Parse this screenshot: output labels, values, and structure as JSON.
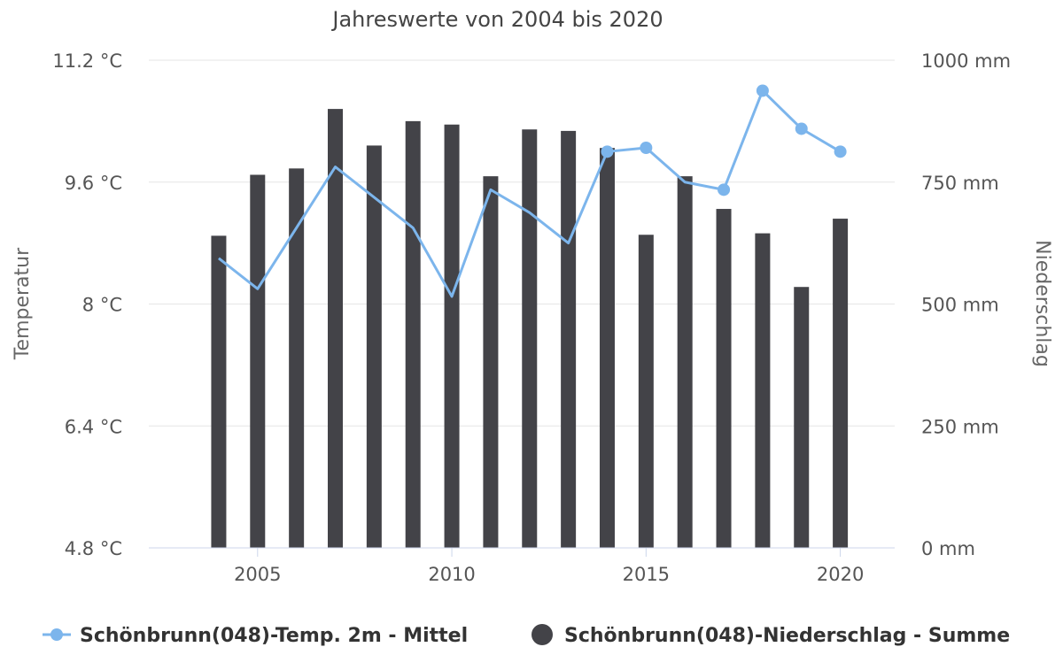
{
  "chart_data": {
    "type": "bar+line",
    "title": "Jahreswerte von 2004 bis 2020",
    "x": [
      2004,
      2005,
      2006,
      2007,
      2008,
      2009,
      2010,
      2011,
      2012,
      2013,
      2014,
      2015,
      2016,
      2017,
      2018,
      2019,
      2020
    ],
    "x_ticks": [
      "2005",
      "2010",
      "2015",
      "2020"
    ],
    "xlim": [
      2002.2,
      2021.4
    ],
    "y_left": {
      "label": "Temperatur",
      "range": [
        4.8,
        11.2
      ],
      "ticks": [
        "4.8 °C",
        "6.4 °C",
        "8 °C",
        "9.6 °C",
        "11.2 °C"
      ]
    },
    "y_right": {
      "label": "Niederschlag",
      "range": [
        0,
        1000
      ],
      "ticks": [
        "0 mm",
        "250 mm",
        "500 mm",
        "750 mm",
        "1000 mm"
      ]
    },
    "grid": true,
    "legend_position": "bottom",
    "series": [
      {
        "name": "Schönbrunn(048)-Temp. 2m - Mittel",
        "type": "line",
        "axis": "left",
        "unit": "°C",
        "color": "#7cb5ec",
        "values": [
          8.6,
          8.2,
          9.0,
          9.8,
          9.4,
          9.0,
          8.1,
          9.5,
          9.2,
          8.8,
          10.0,
          10.05,
          9.6,
          9.5,
          10.8,
          10.3,
          10.0
        ],
        "markers_visible": [
          false,
          false,
          false,
          false,
          false,
          false,
          false,
          false,
          false,
          false,
          true,
          true,
          false,
          true,
          true,
          true,
          true
        ]
      },
      {
        "name": "Schönbrunn(048)-Niederschlag - Summe",
        "type": "bar",
        "axis": "right",
        "unit": "mm",
        "color": "#434348",
        "values": [
          640,
          765,
          778,
          900,
          825,
          875,
          868,
          762,
          858,
          855,
          820,
          642,
          762,
          695,
          645,
          535,
          675
        ]
      }
    ]
  }
}
